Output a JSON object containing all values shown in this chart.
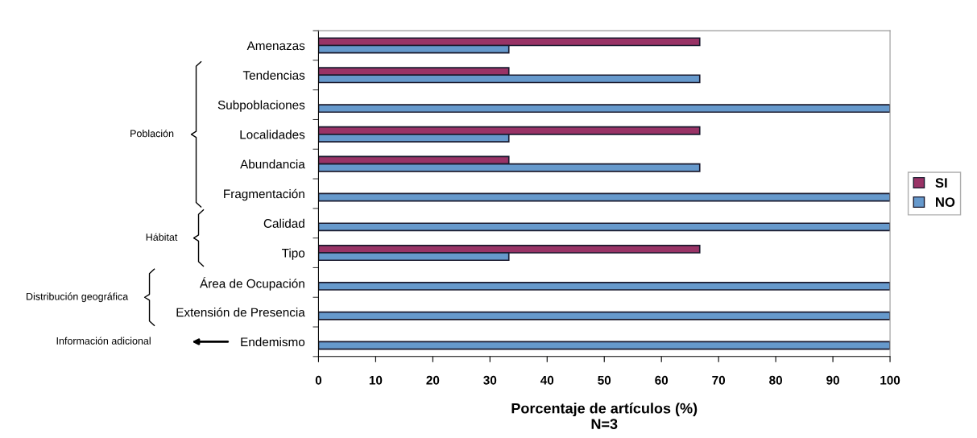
{
  "chart_data": {
    "type": "bar",
    "orientation": "horizontal",
    "categories": [
      "Amenazas",
      "Tendencias",
      "Subpoblaciones",
      "Localidades",
      "Abundancia",
      "Fragmentación",
      "Calidad",
      "Tipo",
      "Área de Ocupación",
      "Extensión de Presencia",
      "Endemismo"
    ],
    "series": [
      {
        "name": "SI",
        "color": "#993366",
        "values": [
          66.7,
          33.3,
          0,
          66.7,
          33.3,
          0,
          0,
          66.7,
          0,
          0,
          0
        ]
      },
      {
        "name": "NO",
        "color": "#6699cc",
        "values": [
          33.3,
          66.7,
          100,
          33.3,
          66.7,
          100,
          100,
          33.3,
          100,
          100,
          100
        ]
      }
    ],
    "xlabel": "Porcentaje de artículos (%)\nN=3",
    "xlim": [
      0,
      100
    ],
    "xticks": [
      0,
      10,
      20,
      30,
      40,
      50,
      60,
      70,
      80,
      90,
      100
    ],
    "annotations": [
      "Población",
      "Hábitat",
      "Distribución geográfica",
      "Información adicional"
    ],
    "grid": false,
    "legend": "right"
  }
}
